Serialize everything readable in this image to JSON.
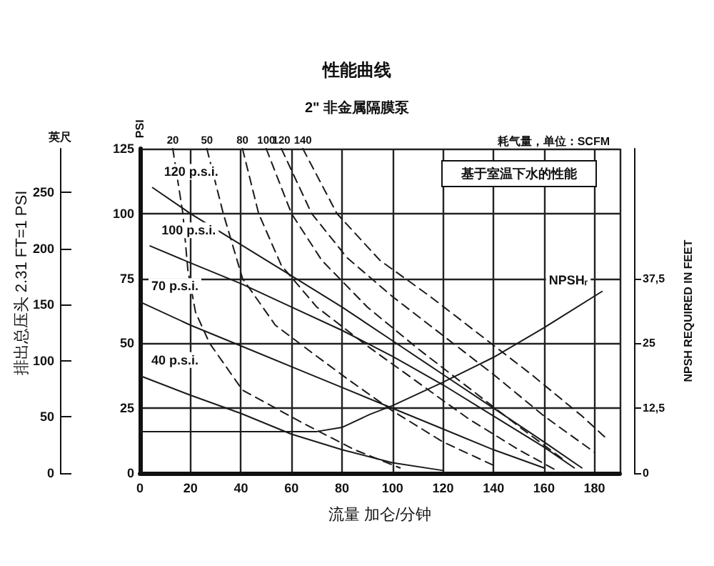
{
  "chart_data": {
    "type": "line",
    "title": "性能曲线",
    "subtitle": "2\" 非金属隔膜泵",
    "xlabel": "流量 加仑/分钟",
    "ylabel": "PSI",
    "y2label": "NPSH REQUIRED IN FEET",
    "y3label": "英尺",
    "annotations": [
      "排出总压头 2.31 FT=1 PSI",
      "耗气量，单位：SCFM",
      "基于室温下水的性能"
    ],
    "xlim": [
      0,
      190
    ],
    "xticks": [
      0,
      20,
      40,
      60,
      80,
      100,
      120,
      140,
      160,
      180
    ],
    "ylim": [
      0,
      125
    ],
    "yticks": [
      0,
      25,
      50,
      75,
      100,
      125
    ],
    "y2lim": [
      0,
      62.5
    ],
    "y2ticks": [
      0,
      {
        "value": 12.5,
        "label": "12,5"
      },
      25,
      {
        "value": 37.5,
        "label": "37,5"
      }
    ],
    "y3lim": [
      0,
      288.75
    ],
    "y3ticks": [
      0,
      50,
      100,
      150,
      200,
      250
    ],
    "grid": true,
    "legend": false,
    "marker": "none",
    "series": [
      {
        "name": "120 p.s.i.",
        "color": "#1a1a1a",
        "line_style": "solid",
        "x": [
          5,
          20,
          40,
          60,
          80,
          100,
          120,
          140,
          160,
          175
        ],
        "values": [
          110,
          100,
          88,
          76,
          64,
          51,
          38,
          25,
          12,
          2
        ]
      },
      {
        "name": "100 p.s.i.",
        "color": "#1a1a1a",
        "line_style": "solid",
        "x": [
          4,
          20,
          40,
          60,
          80,
          100,
          120,
          140,
          160,
          172
        ],
        "values": [
          87.5,
          81,
          73,
          64,
          55,
          45,
          34,
          22,
          10,
          2
        ]
      },
      {
        "name": "70 p.s.i.",
        "color": "#1a1a1a",
        "line_style": "solid",
        "x": [
          0,
          20,
          40,
          60,
          80,
          100,
          120,
          140,
          160
        ],
        "values": [
          66,
          57,
          49,
          41,
          33,
          25,
          17,
          9,
          2
        ]
      },
      {
        "name": "40 p.s.i.",
        "color": "#1a1a1a",
        "line_style": "solid",
        "x": [
          0,
          20,
          40,
          60,
          80,
          100,
          120
        ],
        "values": [
          37.5,
          30,
          23,
          15,
          9,
          4,
          1
        ]
      },
      {
        "name": "NPSHᵣ",
        "color": "#1a1a1a",
        "line_style": "solid",
        "axis": "y2",
        "x": [
          0,
          70,
          80,
          91,
          100,
          120,
          140,
          160,
          183
        ],
        "values": [
          8,
          8,
          8.8,
          11.3,
          13,
          17.5,
          22.3,
          28,
          35
        ]
      },
      {
        "name": "20",
        "color": "#1a1a1a",
        "line_style": "dashed",
        "x": [
          13,
          17,
          19,
          22,
          27.6,
          40.6,
          65,
          85,
          103
        ],
        "values": [
          125,
          100,
          78,
          62,
          50,
          32,
          19,
          9,
          2
        ]
      },
      {
        "name": "50",
        "color": "#1a1a1a",
        "line_style": "dashed",
        "x": [
          26.5,
          33,
          40.6,
          53.6,
          70,
          84,
          100,
          120,
          140
        ],
        "values": [
          125,
          100,
          75,
          57,
          45,
          35,
          24,
          12,
          3
        ]
      },
      {
        "name": "80",
        "color": "#1a1a1a",
        "line_style": "dashed",
        "x": [
          40.6,
          47,
          56,
          70,
          90,
          110,
          130,
          150,
          165
        ],
        "values": [
          125,
          100,
          80,
          64,
          49,
          35,
          21,
          9,
          1
        ]
      },
      {
        "name": "100",
        "color": "#1a1a1a",
        "line_style": "dashed",
        "x": [
          50,
          60,
          72,
          90,
          110,
          130,
          150,
          168
        ],
        "values": [
          125,
          100,
          82,
          64,
          48,
          33,
          18,
          5
        ]
      },
      {
        "name": "120",
        "color": "#1a1a1a",
        "line_style": "dashed",
        "x": [
          56,
          68,
          82,
          100,
          120,
          140,
          160,
          180
        ],
        "values": [
          125,
          100,
          83,
          68,
          53,
          38,
          22,
          8
        ]
      },
      {
        "name": "140",
        "color": "#1a1a1a",
        "line_style": "dashed",
        "x": [
          64.5,
          78,
          95,
          115,
          135,
          155,
          175,
          184
        ],
        "values": [
          125,
          100,
          82,
          68,
          53,
          38,
          22,
          14
        ]
      }
    ]
  }
}
